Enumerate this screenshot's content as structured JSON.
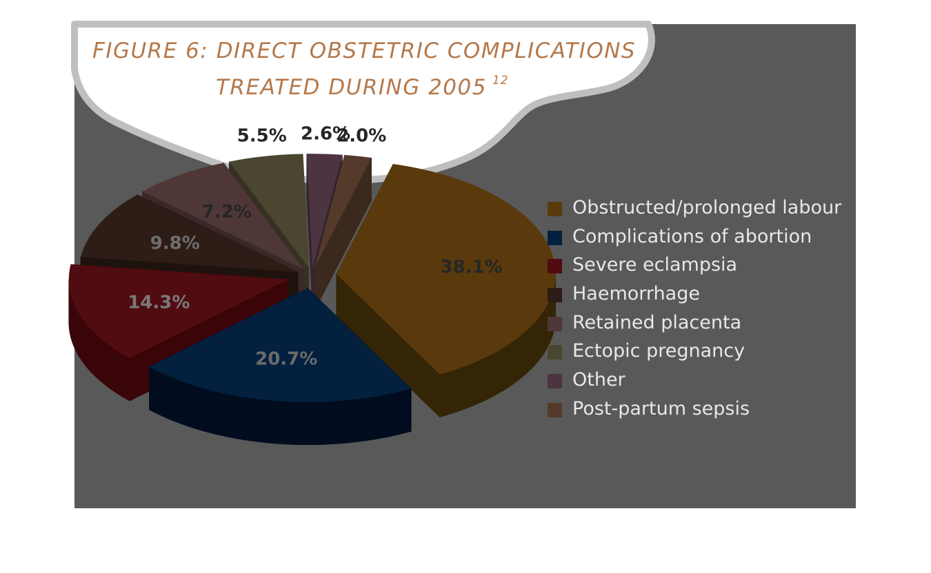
{
  "title": {
    "line1": "FIGURE 6: DIRECT OBSTETRIC COMPLICATIONS",
    "line2": "TREATED DURING 2005",
    "superscript": "12",
    "color": "#b5784a"
  },
  "colors": {
    "panel": "#595959",
    "cloud": "#ffffff",
    "cloud_outline": "#bfbfbf"
  },
  "chart_data": {
    "type": "pie",
    "style": "3d-exploded",
    "unit": "%",
    "slices": [
      {
        "name": "Obstructed/prolonged labour",
        "value": 38.1,
        "label": "38.1%",
        "top": "#5a3a0c",
        "side": "#342507",
        "label_color": "#262626"
      },
      {
        "name": "Complications of abortion",
        "value": 20.7,
        "label": "20.7%",
        "top": "#03203f",
        "side": "#010d1e",
        "label_color": "#6b6b6b"
      },
      {
        "name": "Severe eclampsia",
        "value": 14.3,
        "label": "14.3%",
        "top": "#500c10",
        "side": "#3a0508",
        "label_color": "#7a7a7a"
      },
      {
        "name": "Haemorrhage",
        "value": 9.8,
        "label": "9.8%",
        "top": "#2e1d16",
        "side": "#1e120d",
        "label_color": "#6e6e6e"
      },
      {
        "name": "Retained placenta",
        "value": 7.2,
        "label": "7.2%",
        "top": "#4f3738",
        "side": "#3a2728",
        "label_color": "#262626"
      },
      {
        "name": "Ectopic pregnancy",
        "value": 5.5,
        "label": "5.5%",
        "top": "#4b4630",
        "side": "#353122",
        "label_color": "#262626"
      },
      {
        "name": "Other",
        "value": 2.6,
        "label": "2.6%",
        "top": "#4c3440",
        "side": "#36242d",
        "label_color": "#262626"
      },
      {
        "name": "Post-partum sepsis",
        "value": 2.0,
        "label": "2.0%",
        "top": "#543a2a",
        "side": "#3b291d",
        "label_color": "#262626"
      }
    ],
    "legend_position": "right",
    "legend_label_color": "#e8e8e8"
  }
}
